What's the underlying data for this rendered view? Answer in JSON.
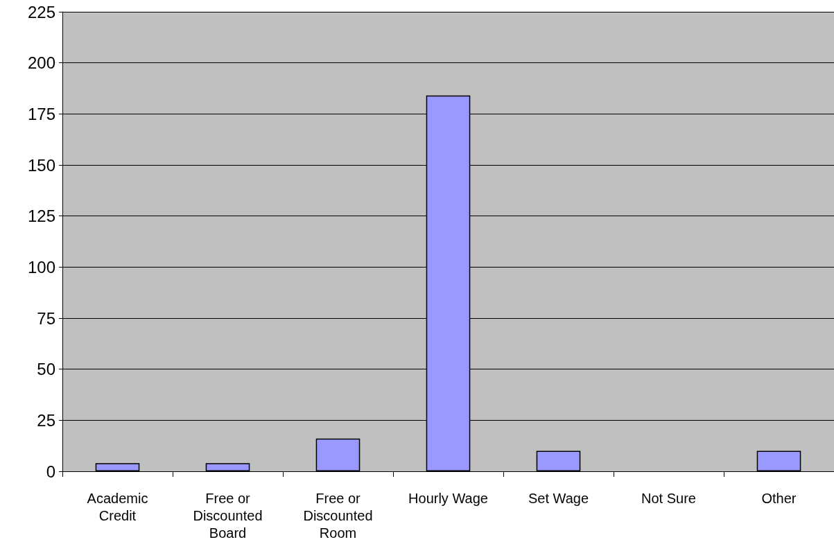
{
  "chart_data": {
    "type": "bar",
    "categories": [
      "Academic\nCredit",
      "Free or\nDiscounted\nBoard",
      "Free or\nDiscounted\nRoom",
      "Hourly Wage",
      "Set Wage",
      "Not Sure",
      "Other"
    ],
    "values": [
      4,
      4,
      16,
      184,
      10,
      0,
      10
    ],
    "color": "#9999ff",
    "ylim": [
      0,
      225
    ],
    "yticks": [
      0,
      25,
      50,
      75,
      100,
      125,
      150,
      175,
      200,
      225
    ],
    "grid": "y"
  }
}
